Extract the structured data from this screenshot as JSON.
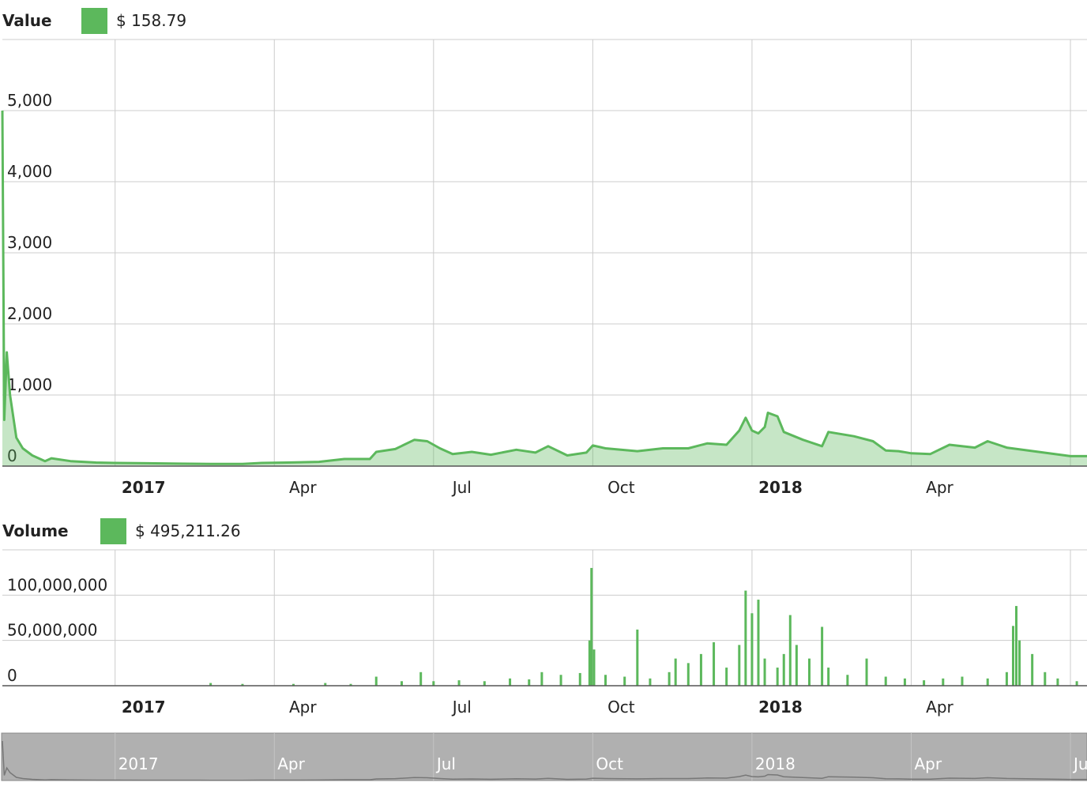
{
  "chart_data": [
    {
      "type": "area",
      "title": "Value",
      "legend": "$ 158.79",
      "color": "#5cb85c",
      "x": [
        2016.823,
        2016.826,
        2016.83,
        2016.835,
        2016.845,
        2016.855,
        2016.87,
        2016.89,
        2016.9,
        2016.93,
        2016.97,
        2017.0,
        2017.05,
        2017.1,
        2017.15,
        2017.2,
        2017.23,
        2017.27,
        2017.32,
        2017.36,
        2017.4,
        2017.41,
        2017.44,
        2017.47,
        2017.49,
        2017.51,
        2017.53,
        2017.56,
        2017.59,
        2017.63,
        2017.66,
        2017.68,
        2017.71,
        2017.74,
        2017.75,
        2017.77,
        2017.82,
        2017.86,
        2017.9,
        2017.93,
        2017.96,
        2017.98,
        2017.99,
        2018.0,
        2018.01,
        2018.02,
        2018.025,
        2018.04,
        2018.05,
        2018.08,
        2018.11,
        2018.12,
        2018.16,
        2018.19,
        2018.21,
        2018.23,
        2018.25,
        2018.28,
        2018.31,
        2018.35,
        2018.37,
        2018.4,
        2018.45,
        2018.5,
        2018.526
      ],
      "values": [
        5000,
        650,
        1600,
        1000,
        400,
        250,
        150,
        70,
        110,
        70,
        50,
        45,
        40,
        35,
        30,
        30,
        45,
        50,
        60,
        100,
        100,
        200,
        240,
        370,
        350,
        250,
        170,
        200,
        160,
        230,
        190,
        280,
        150,
        190,
        290,
        250,
        210,
        250,
        250,
        320,
        300,
        500,
        680,
        500,
        460,
        550,
        750,
        700,
        480,
        370,
        280,
        480,
        420,
        350,
        220,
        210,
        180,
        170,
        300,
        260,
        350,
        260,
        200,
        140,
        140
      ],
      "xlim": [
        2016.823,
        2018.526
      ],
      "xticks": [
        2017,
        {
          "value": 2017.25,
          "label": "Apr"
        },
        {
          "value": 2017.5,
          "label": "Jul"
        },
        {
          "value": 2017.75,
          "label": "Oct"
        },
        2018,
        {
          "value": 2018.25,
          "label": "Apr"
        },
        {
          "value": 2018.5,
          "label": "Jul"
        }
      ],
      "ylim": [
        0,
        6000
      ],
      "yticks": [
        0,
        {
          "value": 1000,
          "label": "1,000"
        },
        {
          "value": 2000,
          "label": "2,000"
        },
        {
          "value": 3000,
          "label": "3,000"
        },
        {
          "value": 4000,
          "label": "4,000"
        },
        {
          "value": 5000,
          "label": "5,000"
        }
      ],
      "grid": true
    },
    {
      "type": "bar",
      "title": "Volume",
      "legend": "$ 495,211.26",
      "color": "#5cb85c",
      "x": [
        2017.15,
        2017.2,
        2017.28,
        2017.33,
        2017.37,
        2017.41,
        2017.45,
        2017.48,
        2017.5,
        2017.54,
        2017.58,
        2017.62,
        2017.65,
        2017.67,
        2017.7,
        2017.73,
        2017.745,
        2017.748,
        2017.752,
        2017.77,
        2017.8,
        2017.82,
        2017.84,
        2017.87,
        2017.88,
        2017.9,
        2017.92,
        2017.94,
        2017.96,
        2017.98,
        2017.99,
        2018.0,
        2018.01,
        2018.02,
        2018.04,
        2018.05,
        2018.06,
        2018.07,
        2018.09,
        2018.11,
        2018.12,
        2018.15,
        2018.18,
        2018.21,
        2018.24,
        2018.27,
        2018.3,
        2018.33,
        2018.37,
        2018.4,
        2018.41,
        2018.415,
        2018.42,
        2018.44,
        2018.46,
        2018.48,
        2018.51
      ],
      "values": [
        3000000,
        2000000,
        2000000,
        3000000,
        2000000,
        10000000,
        5000000,
        15000000,
        5000000,
        6000000,
        5000000,
        8000000,
        7000000,
        15000000,
        12000000,
        14000000,
        50000000,
        130000000,
        40000000,
        12000000,
        10000000,
        62000000,
        8000000,
        15000000,
        30000000,
        25000000,
        35000000,
        48000000,
        20000000,
        45000000,
        105000000,
        80000000,
        95000000,
        30000000,
        20000000,
        35000000,
        78000000,
        45000000,
        30000000,
        65000000,
        20000000,
        12000000,
        30000000,
        10000000,
        8000000,
        6000000,
        8000000,
        10000000,
        8000000,
        15000000,
        66000000,
        88000000,
        50000000,
        35000000,
        15000000,
        8000000,
        5000000
      ],
      "xlim": [
        2016.823,
        2018.526
      ],
      "xticks": [
        2017,
        {
          "value": 2017.25,
          "label": "Apr"
        },
        {
          "value": 2017.5,
          "label": "Jul"
        },
        {
          "value": 2017.75,
          "label": "Oct"
        },
        2018,
        {
          "value": 2018.25,
          "label": "Apr"
        },
        {
          "value": 2018.5,
          "label": "Jul"
        }
      ],
      "ylim": [
        0,
        150000000
      ],
      "yticks": [
        0,
        {
          "value": 50000000,
          "label": "50,000,000"
        },
        {
          "value": 100000000,
          "label": "100,000,000"
        }
      ],
      "grid": true
    }
  ]
}
